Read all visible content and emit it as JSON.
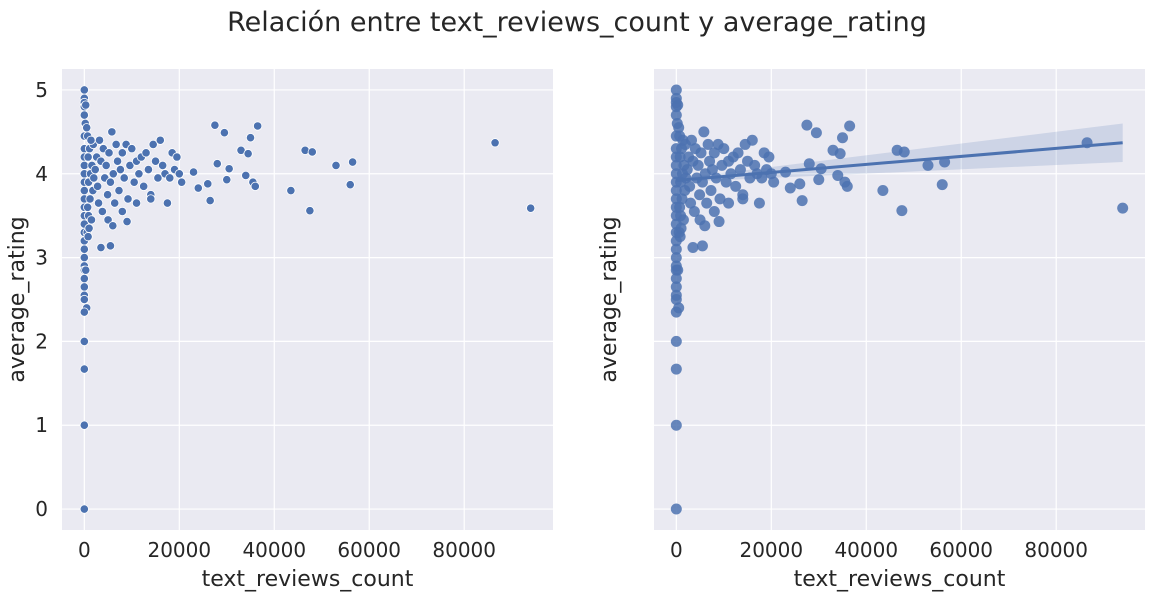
{
  "figure": {
    "suptitle": "Relación entre text_reviews_count y average_rating",
    "colors": {
      "face": "#EAEAF2",
      "grid": "#FFFFFF",
      "point": "#4C72B0",
      "ci_band": "#4C72B0"
    }
  },
  "chart_data": [
    {
      "type": "scatter",
      "title": "",
      "xlabel": "text_reviews_count",
      "ylabel": "average_rating",
      "xlim": [
        -4700,
        98700
      ],
      "ylim": [
        -0.25,
        5.25
      ],
      "xticks": [
        0,
        20000,
        40000,
        60000,
        80000
      ],
      "xtick_labels": [
        "0",
        "20000",
        "40000",
        "60000",
        "80000"
      ],
      "yticks": [
        0,
        1,
        2,
        3,
        4,
        5
      ],
      "ytick_labels": [
        "0",
        "1",
        "2",
        "3",
        "4",
        "5"
      ],
      "grid": true,
      "points": [
        [
          0,
          5.0
        ],
        [
          0,
          4.9
        ],
        [
          0,
          4.85
        ],
        [
          0,
          4.8
        ],
        [
          300,
          4.82
        ],
        [
          0,
          4.7
        ],
        [
          200,
          4.6
        ],
        [
          500,
          4.55
        ],
        [
          0,
          4.45
        ],
        [
          0,
          4.3
        ],
        [
          0,
          4.2
        ],
        [
          0,
          4.1
        ],
        [
          0,
          4.0
        ],
        [
          0,
          3.9
        ],
        [
          0,
          3.8
        ],
        [
          0,
          3.7
        ],
        [
          0,
          3.6
        ],
        [
          0,
          3.5
        ],
        [
          0,
          3.4
        ],
        [
          0,
          3.3
        ],
        [
          0,
          3.2
        ],
        [
          0,
          3.1
        ],
        [
          0,
          3.0
        ],
        [
          0,
          2.9
        ],
        [
          0,
          2.85
        ],
        [
          300,
          2.85
        ],
        [
          0,
          2.75
        ],
        [
          0,
          2.65
        ],
        [
          0,
          2.55
        ],
        [
          0,
          2.5
        ],
        [
          500,
          2.4
        ],
        [
          0,
          2.35
        ],
        [
          0,
          2.0
        ],
        [
          0,
          1.67
        ],
        [
          0,
          1.0
        ],
        [
          0,
          0.0
        ],
        [
          600,
          3.3
        ],
        [
          800,
          3.25
        ],
        [
          1000,
          3.35
        ],
        [
          900,
          3.5
        ],
        [
          1500,
          3.45
        ],
        [
          700,
          3.6
        ],
        [
          1200,
          3.7
        ],
        [
          1800,
          3.8
        ],
        [
          900,
          3.9
        ],
        [
          1300,
          4.0
        ],
        [
          1600,
          4.1
        ],
        [
          800,
          4.2
        ],
        [
          1100,
          4.3
        ],
        [
          1900,
          4.35
        ],
        [
          700,
          4.45
        ],
        [
          1400,
          4.4
        ],
        [
          2000,
          3.95
        ],
        [
          2300,
          4.05
        ],
        [
          2600,
          4.2
        ],
        [
          2800,
          3.85
        ],
        [
          3000,
          3.65
        ],
        [
          3200,
          4.4
        ],
        [
          3500,
          4.15
        ],
        [
          3800,
          3.55
        ],
        [
          4000,
          4.3
        ],
        [
          4300,
          3.95
        ],
        [
          4600,
          4.1
        ],
        [
          4900,
          3.75
        ],
        [
          5200,
          4.25
        ],
        [
          5500,
          3.9
        ],
        [
          5800,
          4.5
        ],
        [
          6100,
          4.0
        ],
        [
          6400,
          3.65
        ],
        [
          6700,
          4.35
        ],
        [
          7000,
          4.15
        ],
        [
          7300,
          3.8
        ],
        [
          7600,
          4.05
        ],
        [
          8000,
          4.25
        ],
        [
          8400,
          3.95
        ],
        [
          8800,
          4.35
        ],
        [
          9200,
          3.7
        ],
        [
          9600,
          4.1
        ],
        [
          10000,
          4.3
        ],
        [
          10500,
          3.9
        ],
        [
          11000,
          4.15
        ],
        [
          11500,
          4.0
        ],
        [
          12000,
          4.2
        ],
        [
          12500,
          3.85
        ],
        [
          13000,
          4.25
        ],
        [
          13500,
          4.05
        ],
        [
          14000,
          3.75
        ],
        [
          14500,
          4.35
        ],
        [
          15000,
          4.15
        ],
        [
          15500,
          3.95
        ],
        [
          16000,
          4.4
        ],
        [
          16500,
          4.1
        ],
        [
          17000,
          4.0
        ],
        [
          17500,
          3.65
        ],
        [
          18000,
          3.95
        ],
        [
          18500,
          4.25
        ],
        [
          19000,
          4.05
        ],
        [
          19500,
          4.2
        ],
        [
          20000,
          4.0
        ],
        [
          20500,
          3.9
        ],
        [
          5000,
          3.45
        ],
        [
          6000,
          3.38
        ],
        [
          9000,
          3.43
        ],
        [
          3500,
          3.12
        ],
        [
          5500,
          3.14
        ],
        [
          11000,
          3.65
        ],
        [
          14000,
          3.7
        ],
        [
          8000,
          3.55
        ],
        [
          23000,
          4.02
        ],
        [
          24000,
          3.83
        ],
        [
          26000,
          3.88
        ],
        [
          26500,
          3.68
        ],
        [
          27500,
          4.58
        ],
        [
          28000,
          4.12
        ],
        [
          29500,
          4.49
        ],
        [
          30000,
          3.93
        ],
        [
          30500,
          4.06
        ],
        [
          33000,
          4.28
        ],
        [
          34000,
          3.98
        ],
        [
          34500,
          4.24
        ],
        [
          35000,
          4.43
        ],
        [
          35500,
          3.9
        ],
        [
          36000,
          3.85
        ],
        [
          36500,
          4.57
        ],
        [
          43500,
          3.8
        ],
        [
          46500,
          4.28
        ],
        [
          47500,
          3.56
        ],
        [
          48000,
          4.26
        ],
        [
          53000,
          4.1
        ],
        [
          56000,
          3.87
        ],
        [
          56500,
          4.14
        ],
        [
          86500,
          4.37
        ],
        [
          94000,
          3.59
        ]
      ]
    },
    {
      "type": "scatter",
      "title": "",
      "xlabel": "text_reviews_count",
      "ylabel": "average_rating",
      "xlim": [
        -4700,
        98700
      ],
      "ylim": [
        -0.25,
        5.25
      ],
      "xticks": [
        0,
        20000,
        40000,
        60000,
        80000
      ],
      "xtick_labels": [
        "0",
        "20000",
        "40000",
        "60000",
        "80000"
      ],
      "yticks": [
        0,
        1,
        2,
        3,
        4,
        5
      ],
      "ytick_labels": [],
      "grid": true,
      "regression": {
        "x": [
          0,
          94000
        ],
        "y": [
          3.92,
          4.37
        ]
      },
      "confidence_band": {
        "x": [
          0,
          94000
        ],
        "lower": [
          3.9,
          4.14
        ],
        "upper": [
          3.94,
          4.6
        ]
      },
      "points": [
        [
          0,
          5.0
        ],
        [
          0,
          4.9
        ],
        [
          0,
          4.85
        ],
        [
          0,
          4.8
        ],
        [
          300,
          4.82
        ],
        [
          0,
          4.7
        ],
        [
          200,
          4.6
        ],
        [
          500,
          4.55
        ],
        [
          0,
          4.45
        ],
        [
          0,
          4.3
        ],
        [
          0,
          4.2
        ],
        [
          0,
          4.1
        ],
        [
          0,
          4.0
        ],
        [
          0,
          3.9
        ],
        [
          0,
          3.8
        ],
        [
          0,
          3.7
        ],
        [
          0,
          3.6
        ],
        [
          0,
          3.5
        ],
        [
          0,
          3.4
        ],
        [
          0,
          3.3
        ],
        [
          0,
          3.2
        ],
        [
          0,
          3.1
        ],
        [
          0,
          3.0
        ],
        [
          0,
          2.9
        ],
        [
          0,
          2.85
        ],
        [
          300,
          2.85
        ],
        [
          0,
          2.75
        ],
        [
          0,
          2.65
        ],
        [
          0,
          2.55
        ],
        [
          0,
          2.5
        ],
        [
          500,
          2.4
        ],
        [
          0,
          2.35
        ],
        [
          0,
          2.0
        ],
        [
          0,
          1.67
        ],
        [
          0,
          1.0
        ],
        [
          0,
          0.0
        ],
        [
          600,
          3.3
        ],
        [
          800,
          3.25
        ],
        [
          1000,
          3.35
        ],
        [
          900,
          3.5
        ],
        [
          1500,
          3.45
        ],
        [
          700,
          3.6
        ],
        [
          1200,
          3.7
        ],
        [
          1800,
          3.8
        ],
        [
          900,
          3.9
        ],
        [
          1300,
          4.0
        ],
        [
          1600,
          4.1
        ],
        [
          800,
          4.2
        ],
        [
          1100,
          4.3
        ],
        [
          1900,
          4.35
        ],
        [
          700,
          4.45
        ],
        [
          1400,
          4.4
        ],
        [
          2000,
          3.95
        ],
        [
          2300,
          4.05
        ],
        [
          2600,
          4.2
        ],
        [
          2800,
          3.85
        ],
        [
          3000,
          3.65
        ],
        [
          3200,
          4.4
        ],
        [
          3500,
          4.15
        ],
        [
          3800,
          3.55
        ],
        [
          4000,
          4.3
        ],
        [
          4300,
          3.95
        ],
        [
          4600,
          4.1
        ],
        [
          4900,
          3.75
        ],
        [
          5200,
          4.25
        ],
        [
          5500,
          3.9
        ],
        [
          5800,
          4.5
        ],
        [
          6100,
          4.0
        ],
        [
          6400,
          3.65
        ],
        [
          6700,
          4.35
        ],
        [
          7000,
          4.15
        ],
        [
          7300,
          3.8
        ],
        [
          7600,
          4.05
        ],
        [
          8000,
          4.25
        ],
        [
          8400,
          3.95
        ],
        [
          8800,
          4.35
        ],
        [
          9200,
          3.7
        ],
        [
          9600,
          4.1
        ],
        [
          10000,
          4.3
        ],
        [
          10500,
          3.9
        ],
        [
          11000,
          4.15
        ],
        [
          11500,
          4.0
        ],
        [
          12000,
          4.2
        ],
        [
          12500,
          3.85
        ],
        [
          13000,
          4.25
        ],
        [
          13500,
          4.05
        ],
        [
          14000,
          3.75
        ],
        [
          14500,
          4.35
        ],
        [
          15000,
          4.15
        ],
        [
          15500,
          3.95
        ],
        [
          16000,
          4.4
        ],
        [
          16500,
          4.1
        ],
        [
          17000,
          4.0
        ],
        [
          17500,
          3.65
        ],
        [
          18000,
          3.95
        ],
        [
          18500,
          4.25
        ],
        [
          19000,
          4.05
        ],
        [
          19500,
          4.2
        ],
        [
          20000,
          4.0
        ],
        [
          20500,
          3.9
        ],
        [
          5000,
          3.45
        ],
        [
          6000,
          3.38
        ],
        [
          9000,
          3.43
        ],
        [
          3500,
          3.12
        ],
        [
          5500,
          3.14
        ],
        [
          11000,
          3.65
        ],
        [
          14000,
          3.7
        ],
        [
          8000,
          3.55
        ],
        [
          23000,
          4.02
        ],
        [
          24000,
          3.83
        ],
        [
          26000,
          3.88
        ],
        [
          26500,
          3.68
        ],
        [
          27500,
          4.58
        ],
        [
          28000,
          4.12
        ],
        [
          29500,
          4.49
        ],
        [
          30000,
          3.93
        ],
        [
          30500,
          4.06
        ],
        [
          33000,
          4.28
        ],
        [
          34000,
          3.98
        ],
        [
          34500,
          4.24
        ],
        [
          35000,
          4.43
        ],
        [
          35500,
          3.9
        ],
        [
          36000,
          3.85
        ],
        [
          36500,
          4.57
        ],
        [
          43500,
          3.8
        ],
        [
          46500,
          4.28
        ],
        [
          47500,
          3.56
        ],
        [
          48000,
          4.26
        ],
        [
          53000,
          4.1
        ],
        [
          56000,
          3.87
        ],
        [
          56500,
          4.14
        ],
        [
          86500,
          4.37
        ],
        [
          94000,
          3.59
        ]
      ]
    }
  ]
}
